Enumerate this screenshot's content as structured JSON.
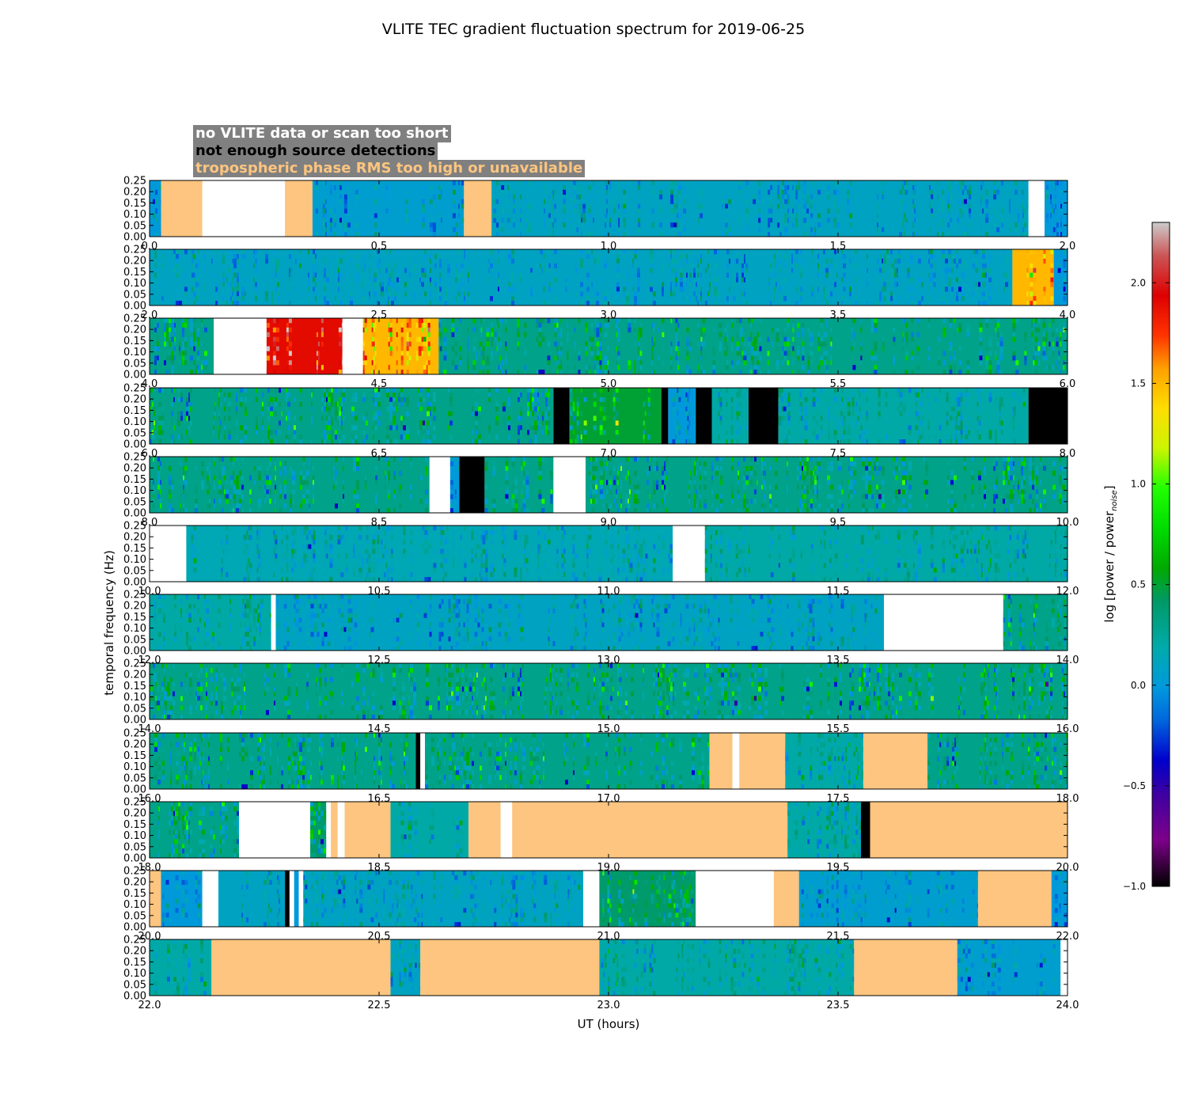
{
  "chart_data": {
    "type": "heatmap",
    "title": "VLITE TEC gradient fluctuation spectrum for 2019-06-25",
    "xlabel": "UT (hours)",
    "ylabel": "temporal frequency (Hz)",
    "y_range": [
      0,
      0.25
    ],
    "y_ticks": [
      "0.00",
      "0.05",
      "0.10",
      "0.15",
      "0.20",
      "0.25"
    ],
    "legend": [
      {
        "label": "no VLITE data or scan too short",
        "text_color": "#ffffff",
        "fill": "#ffffff"
      },
      {
        "label": "not enough source detections",
        "text_color": "#000000",
        "fill": "#000000"
      },
      {
        "label": "tropospheric phase RMS too high or unavailable",
        "text_color": "#fdc57f",
        "fill": "#fdc57f"
      }
    ],
    "legend_background": "#808080",
    "colorbar": {
      "label": "log [power / power_noise]",
      "range": [
        -1.0,
        2.3
      ],
      "ticks": [
        "−1.0",
        "−0.5",
        "0.0",
        "0.5",
        "1.0",
        "1.5",
        "2.0"
      ],
      "tick_values": [
        -1.0,
        -0.5,
        0.0,
        0.5,
        1.0,
        1.5,
        2.0
      ],
      "colormap": "nipy_spectral"
    },
    "panels": [
      {
        "x_range": [
          0.0,
          2.0
        ],
        "x_ticks": [
          "0.0",
          "0.5",
          "1.0",
          "1.5",
          "2.0"
        ],
        "segments": [
          {
            "start": 0.0,
            "end": 0.025,
            "kind": "data",
            "level": 0.0
          },
          {
            "start": 0.025,
            "end": 0.115,
            "kind": "tropo"
          },
          {
            "start": 0.115,
            "end": 0.295,
            "kind": "nodata"
          },
          {
            "start": 0.295,
            "end": 0.355,
            "kind": "tropo"
          },
          {
            "start": 0.355,
            "end": 0.685,
            "kind": "data",
            "level": 0.05
          },
          {
            "start": 0.685,
            "end": 0.745,
            "kind": "tropo"
          },
          {
            "start": 0.745,
            "end": 1.915,
            "kind": "data",
            "level": 0.1
          },
          {
            "start": 1.915,
            "end": 1.95,
            "kind": "nodata"
          },
          {
            "start": 1.95,
            "end": 2.0,
            "kind": "data",
            "level": 0.0
          }
        ]
      },
      {
        "x_range": [
          2.0,
          4.0
        ],
        "x_ticks": [
          "2.0",
          "2.5",
          "3.0",
          "3.5",
          "4.0"
        ],
        "segments": [
          {
            "start": 2.0,
            "end": 3.88,
            "kind": "data",
            "level": 0.1
          },
          {
            "start": 3.88,
            "end": 3.97,
            "kind": "data",
            "level": 1.5
          },
          {
            "start": 3.97,
            "end": 4.0,
            "kind": "data",
            "level": 0.0
          }
        ]
      },
      {
        "x_range": [
          4.0,
          6.0
        ],
        "x_ticks": [
          "4.0",
          "4.5",
          "5.0",
          "5.5",
          "6.0"
        ],
        "segments": [
          {
            "start": 4.0,
            "end": 4.14,
            "kind": "data",
            "level": 0.3
          },
          {
            "start": 4.14,
            "end": 4.255,
            "kind": "nodata"
          },
          {
            "start": 4.255,
            "end": 4.42,
            "kind": "data",
            "level": 1.9
          },
          {
            "start": 4.465,
            "end": 4.63,
            "kind": "data",
            "level": 1.5
          },
          {
            "start": 4.63,
            "end": 6.0,
            "kind": "data",
            "level": 0.3
          }
        ]
      },
      {
        "x_range": [
          6.0,
          8.0
        ],
        "x_ticks": [
          "6.0",
          "6.5",
          "7.0",
          "7.5",
          "8.0"
        ],
        "segments": [
          {
            "start": 6.0,
            "end": 6.88,
            "kind": "data",
            "level": 0.3
          },
          {
            "start": 6.88,
            "end": 6.915,
            "kind": "nodetect"
          },
          {
            "start": 6.915,
            "end": 7.115,
            "kind": "data",
            "level": 0.5
          },
          {
            "start": 7.115,
            "end": 7.13,
            "kind": "nodetect"
          },
          {
            "start": 7.13,
            "end": 7.19,
            "kind": "data",
            "level": 0.0
          },
          {
            "start": 7.19,
            "end": 7.225,
            "kind": "nodetect"
          },
          {
            "start": 7.225,
            "end": 7.305,
            "kind": "data",
            "level": 0.2
          },
          {
            "start": 7.305,
            "end": 7.37,
            "kind": "nodetect"
          },
          {
            "start": 7.37,
            "end": 7.915,
            "kind": "data",
            "level": 0.2
          },
          {
            "start": 7.915,
            "end": 8.0,
            "kind": "nodetect"
          }
        ]
      },
      {
        "x_range": [
          8.0,
          10.0
        ],
        "x_ticks": [
          "8.0",
          "8.5",
          "9.0",
          "9.5",
          "10.0"
        ],
        "segments": [
          {
            "start": 8.0,
            "end": 8.61,
            "kind": "data",
            "level": 0.3
          },
          {
            "start": 8.61,
            "end": 8.655,
            "kind": "nodata"
          },
          {
            "start": 8.655,
            "end": 8.675,
            "kind": "data",
            "level": 0.0
          },
          {
            "start": 8.675,
            "end": 8.73,
            "kind": "nodetect"
          },
          {
            "start": 8.73,
            "end": 8.88,
            "kind": "data",
            "level": 0.3
          },
          {
            "start": 8.88,
            "end": 8.95,
            "kind": "nodata"
          },
          {
            "start": 8.95,
            "end": 10.0,
            "kind": "data",
            "level": 0.3
          }
        ]
      },
      {
        "x_range": [
          10.0,
          12.0
        ],
        "x_ticks": [
          "10.0",
          "10.5",
          "11.0",
          "11.5",
          "12.0"
        ],
        "segments": [
          {
            "start": 10.0,
            "end": 10.08,
            "kind": "nodata"
          },
          {
            "start": 10.08,
            "end": 11.14,
            "kind": "data",
            "level": 0.15
          },
          {
            "start": 11.14,
            "end": 11.21,
            "kind": "nodata"
          },
          {
            "start": 11.21,
            "end": 12.0,
            "kind": "data",
            "level": 0.2
          }
        ]
      },
      {
        "x_range": [
          12.0,
          14.0
        ],
        "x_ticks": [
          "12.0",
          "12.5",
          "13.0",
          "13.5",
          "14.0"
        ],
        "segments": [
          {
            "start": 12.0,
            "end": 12.265,
            "kind": "data",
            "level": 0.2
          },
          {
            "start": 12.265,
            "end": 12.275,
            "kind": "nodata"
          },
          {
            "start": 12.275,
            "end": 13.6,
            "kind": "data",
            "level": 0.1
          },
          {
            "start": 13.6,
            "end": 13.86,
            "kind": "nodata"
          },
          {
            "start": 13.86,
            "end": 14.0,
            "kind": "data",
            "level": 0.3
          }
        ]
      },
      {
        "x_range": [
          14.0,
          16.0
        ],
        "x_ticks": [
          "14.0",
          "14.5",
          "15.0",
          "15.5",
          "16.0"
        ],
        "segments": [
          {
            "start": 14.0,
            "end": 16.0,
            "kind": "data",
            "level": 0.3
          }
        ]
      },
      {
        "x_range": [
          16.0,
          18.0
        ],
        "x_ticks": [
          "16.0",
          "16.5",
          "17.0",
          "17.5",
          "18.0"
        ],
        "segments": [
          {
            "start": 16.0,
            "end": 16.58,
            "kind": "data",
            "level": 0.3
          },
          {
            "start": 16.58,
            "end": 16.59,
            "kind": "nodetect"
          },
          {
            "start": 16.59,
            "end": 16.6,
            "kind": "nodata"
          },
          {
            "start": 16.6,
            "end": 17.22,
            "kind": "data",
            "level": 0.3
          },
          {
            "start": 17.22,
            "end": 17.27,
            "kind": "tropo"
          },
          {
            "start": 17.27,
            "end": 17.285,
            "kind": "nodata"
          },
          {
            "start": 17.285,
            "end": 17.385,
            "kind": "tropo"
          },
          {
            "start": 17.385,
            "end": 17.555,
            "kind": "data",
            "level": 0.2
          },
          {
            "start": 17.555,
            "end": 17.695,
            "kind": "tropo"
          },
          {
            "start": 17.695,
            "end": 18.0,
            "kind": "data",
            "level": 0.3
          }
        ]
      },
      {
        "x_range": [
          18.0,
          20.0
        ],
        "x_ticks": [
          "18.0",
          "18.5",
          "19.0",
          "19.5",
          "20.0"
        ],
        "segments": [
          {
            "start": 18.0,
            "end": 18.195,
            "kind": "data",
            "level": 0.3
          },
          {
            "start": 18.195,
            "end": 18.35,
            "kind": "nodata"
          },
          {
            "start": 18.35,
            "end": 18.385,
            "kind": "data",
            "level": 0.4
          },
          {
            "start": 18.385,
            "end": 18.395,
            "kind": "nodata"
          },
          {
            "start": 18.395,
            "end": 18.41,
            "kind": "tropo"
          },
          {
            "start": 18.41,
            "end": 18.425,
            "kind": "nodata"
          },
          {
            "start": 18.425,
            "end": 18.525,
            "kind": "tropo"
          },
          {
            "start": 18.525,
            "end": 18.695,
            "kind": "data",
            "level": 0.2
          },
          {
            "start": 18.695,
            "end": 18.765,
            "kind": "tropo"
          },
          {
            "start": 18.765,
            "end": 18.79,
            "kind": "nodata"
          },
          {
            "start": 18.79,
            "end": 19.39,
            "kind": "tropo"
          },
          {
            "start": 19.39,
            "end": 19.55,
            "kind": "data",
            "level": 0.2
          },
          {
            "start": 19.55,
            "end": 19.57,
            "kind": "nodetect"
          },
          {
            "start": 19.57,
            "end": 20.0,
            "kind": "tropo"
          }
        ]
      },
      {
        "x_range": [
          20.0,
          22.0
        ],
        "x_ticks": [
          "20.0",
          "20.5",
          "21.0",
          "21.5",
          "22.0"
        ],
        "segments": [
          {
            "start": 20.0,
            "end": 20.025,
            "kind": "tropo"
          },
          {
            "start": 20.025,
            "end": 20.115,
            "kind": "data",
            "level": 0.0
          },
          {
            "start": 20.115,
            "end": 20.15,
            "kind": "nodata"
          },
          {
            "start": 20.15,
            "end": 20.295,
            "kind": "data",
            "level": 0.1
          },
          {
            "start": 20.295,
            "end": 20.305,
            "kind": "nodetect"
          },
          {
            "start": 20.305,
            "end": 20.315,
            "kind": "nodata"
          },
          {
            "start": 20.315,
            "end": 20.325,
            "kind": "data",
            "level": 0.0
          },
          {
            "start": 20.325,
            "end": 20.335,
            "kind": "nodata"
          },
          {
            "start": 20.335,
            "end": 20.945,
            "kind": "data",
            "level": 0.1
          },
          {
            "start": 20.945,
            "end": 20.98,
            "kind": "nodata"
          },
          {
            "start": 20.98,
            "end": 21.19,
            "kind": "data",
            "level": 0.4
          },
          {
            "start": 21.19,
            "end": 21.36,
            "kind": "nodata"
          },
          {
            "start": 21.36,
            "end": 21.415,
            "kind": "tropo"
          },
          {
            "start": 21.415,
            "end": 21.805,
            "kind": "data",
            "level": 0.05
          },
          {
            "start": 21.805,
            "end": 21.965,
            "kind": "tropo"
          },
          {
            "start": 21.965,
            "end": 22.0,
            "kind": "data",
            "level": 0.0
          }
        ]
      },
      {
        "x_range": [
          22.0,
          24.0
        ],
        "x_ticks": [
          "22.0",
          "22.5",
          "23.0",
          "23.5",
          "24.0"
        ],
        "segments": [
          {
            "start": 22.0,
            "end": 22.135,
            "kind": "data",
            "level": 0.2
          },
          {
            "start": 22.135,
            "end": 22.525,
            "kind": "tropo"
          },
          {
            "start": 22.525,
            "end": 22.59,
            "kind": "data",
            "level": 0.1
          },
          {
            "start": 22.59,
            "end": 22.98,
            "kind": "tropo"
          },
          {
            "start": 22.98,
            "end": 23.535,
            "kind": "data",
            "level": 0.2
          },
          {
            "start": 23.535,
            "end": 23.76,
            "kind": "tropo"
          },
          {
            "start": 23.76,
            "end": 23.985,
            "kind": "data",
            "level": 0.05
          },
          {
            "start": 23.985,
            "end": 24.0,
            "kind": "nodata"
          }
        ]
      }
    ]
  }
}
